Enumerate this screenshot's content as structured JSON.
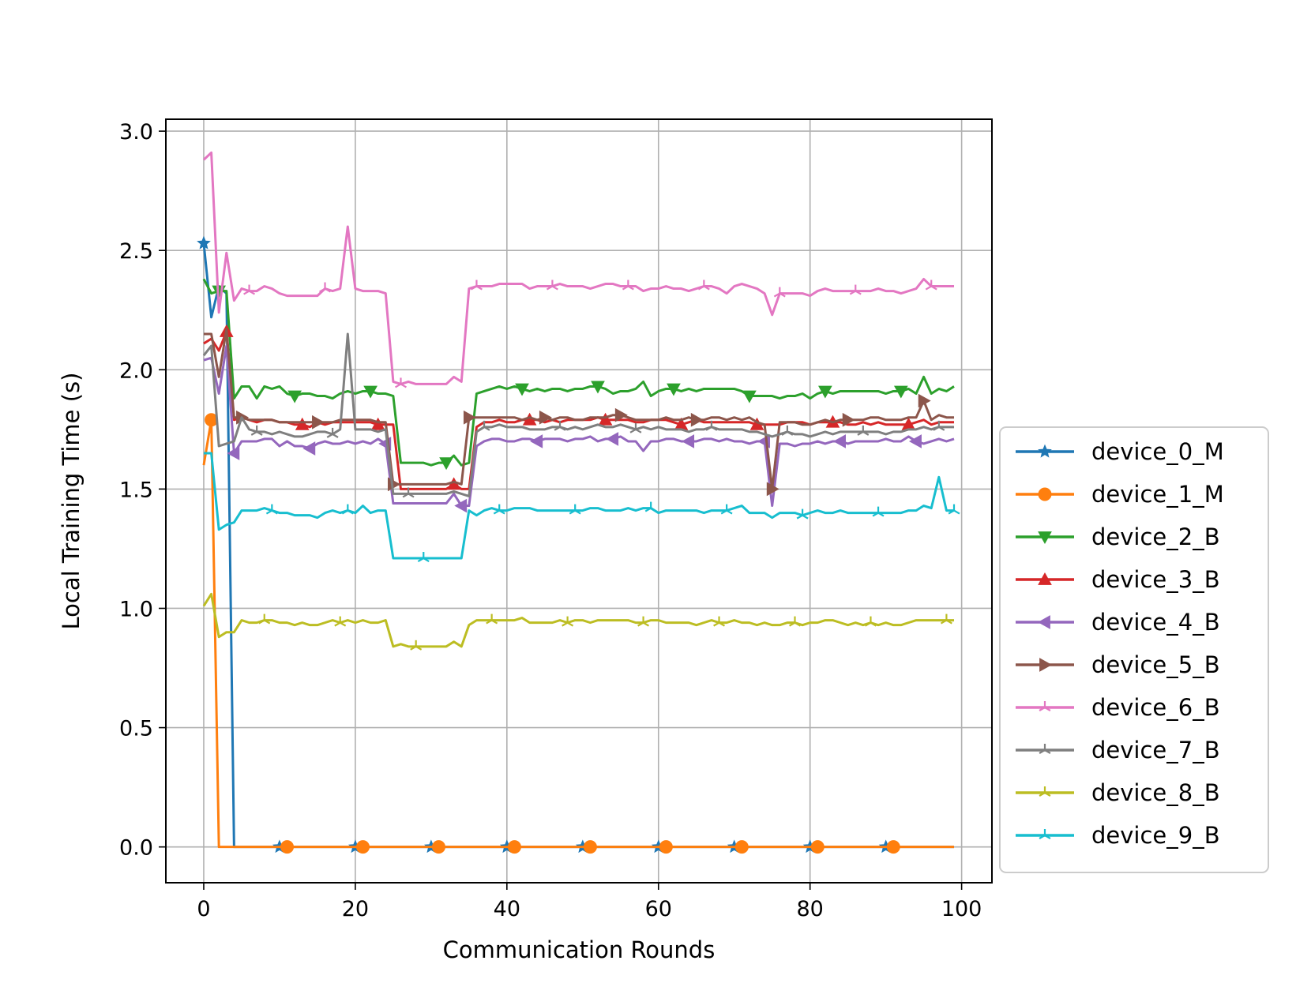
{
  "chart_data": {
    "type": "line",
    "title": "",
    "xlabel": "Communication Rounds",
    "ylabel": "Local Training Time (s)",
    "xlim": [
      -5,
      104
    ],
    "ylim": [
      -0.15,
      3.05
    ],
    "xticks": [
      0,
      20,
      40,
      60,
      80,
      100
    ],
    "xtick_labels": [
      "0",
      "20",
      "40",
      "60",
      "80",
      "100"
    ],
    "yticks": [
      0.0,
      0.5,
      1.0,
      1.5,
      2.0,
      2.5,
      3.0
    ],
    "ytick_labels": [
      "0.0",
      "0.5",
      "1.0",
      "1.5",
      "2.0",
      "2.5",
      "3.0"
    ],
    "grid": true,
    "legend_position": "outside-right",
    "marker_every": 10,
    "series": [
      {
        "name": "device_0_M",
        "color": "#1f77b4",
        "marker": "star",
        "marker_start": 0,
        "values": [
          2.53,
          2.22,
          2.35,
          2.32,
          0.0,
          0.0,
          0.0,
          0.0,
          0.0,
          0.0,
          0.0,
          0.0,
          0.0,
          0.0,
          0.0,
          0.0,
          0.0,
          0.0,
          0.0,
          0.0,
          0.0,
          0.0,
          0.0,
          0.0,
          0.0,
          0.0,
          0.0,
          0.0,
          0.0,
          0.0,
          0.0,
          0.0,
          0.0,
          0.0,
          0.0,
          0.0,
          0.0,
          0.0,
          0.0,
          0.0,
          0.0,
          0.0,
          0.0,
          0.0,
          0.0,
          0.0,
          0.0,
          0.0,
          0.0,
          0.0,
          0.0,
          0.0,
          0.0,
          0.0,
          0.0,
          0.0,
          0.0,
          0.0,
          0.0,
          0.0,
          0.0,
          0.0,
          0.0,
          0.0,
          0.0,
          0.0,
          0.0,
          0.0,
          0.0,
          0.0,
          0.0,
          0.0,
          0.0,
          0.0,
          0.0,
          0.0,
          0.0,
          0.0,
          0.0,
          0.0,
          0.0,
          0.0,
          0.0,
          0.0,
          0.0,
          0.0,
          0.0,
          0.0,
          0.0,
          0.0,
          0.0,
          0.0,
          0.0,
          0.0,
          0.0,
          0.0,
          0.0,
          0.0,
          0.0,
          0.0
        ]
      },
      {
        "name": "device_1_M",
        "color": "#ff7f0e",
        "marker": "circle",
        "marker_start": 1,
        "values": [
          1.6,
          1.79,
          0.0,
          0.0,
          0.0,
          0.0,
          0.0,
          0.0,
          0.0,
          0.0,
          0.0,
          0.0,
          0.0,
          0.0,
          0.0,
          0.0,
          0.0,
          0.0,
          0.0,
          0.0,
          0.0,
          0.0,
          0.0,
          0.0,
          0.0,
          0.0,
          0.0,
          0.0,
          0.0,
          0.0,
          0.0,
          0.0,
          0.0,
          0.0,
          0.0,
          0.0,
          0.0,
          0.0,
          0.0,
          0.0,
          0.0,
          0.0,
          0.0,
          0.0,
          0.0,
          0.0,
          0.0,
          0.0,
          0.0,
          0.0,
          0.0,
          0.0,
          0.0,
          0.0,
          0.0,
          0.0,
          0.0,
          0.0,
          0.0,
          0.0,
          0.0,
          0.0,
          0.0,
          0.0,
          0.0,
          0.0,
          0.0,
          0.0,
          0.0,
          0.0,
          0.0,
          0.0,
          0.0,
          0.0,
          0.0,
          0.0,
          0.0,
          0.0,
          0.0,
          0.0,
          0.0,
          0.0,
          0.0,
          0.0,
          0.0,
          0.0,
          0.0,
          0.0,
          0.0,
          0.0,
          0.0,
          0.0,
          0.0,
          0.0,
          0.0,
          0.0,
          0.0,
          0.0,
          0.0,
          0.0
        ]
      },
      {
        "name": "device_2_B",
        "color": "#2ca02c",
        "marker": "triangle-down",
        "marker_start": 2,
        "values": [
          2.38,
          2.32,
          2.33,
          2.33,
          1.88,
          1.93,
          1.93,
          1.88,
          1.93,
          1.92,
          1.93,
          1.9,
          1.89,
          1.9,
          1.9,
          1.89,
          1.89,
          1.88,
          1.9,
          1.91,
          1.9,
          1.91,
          1.91,
          1.9,
          1.9,
          1.89,
          1.61,
          1.61,
          1.61,
          1.61,
          1.6,
          1.61,
          1.61,
          1.64,
          1.6,
          1.61,
          1.9,
          1.91,
          1.92,
          1.93,
          1.92,
          1.93,
          1.92,
          1.91,
          1.92,
          1.91,
          1.92,
          1.92,
          1.91,
          1.92,
          1.92,
          1.93,
          1.93,
          1.92,
          1.9,
          1.91,
          1.91,
          1.92,
          1.95,
          1.89,
          1.91,
          1.92,
          1.92,
          1.91,
          1.92,
          1.91,
          1.92,
          1.92,
          1.92,
          1.92,
          1.92,
          1.91,
          1.89,
          1.89,
          1.89,
          1.89,
          1.88,
          1.89,
          1.89,
          1.9,
          1.88,
          1.9,
          1.91,
          1.9,
          1.91,
          1.91,
          1.91,
          1.91,
          1.91,
          1.91,
          1.9,
          1.91,
          1.91,
          1.92,
          1.9,
          1.97,
          1.9,
          1.92,
          1.91,
          1.93
        ]
      },
      {
        "name": "device_3_B",
        "color": "#d62728",
        "marker": "triangle-up",
        "marker_start": 3,
        "values": [
          2.11,
          2.13,
          2.08,
          2.16,
          1.79,
          1.8,
          1.79,
          1.78,
          1.79,
          1.79,
          1.78,
          1.78,
          1.77,
          1.77,
          1.76,
          1.78,
          1.77,
          1.78,
          1.78,
          1.78,
          1.78,
          1.78,
          1.78,
          1.77,
          1.77,
          1.77,
          1.5,
          1.5,
          1.5,
          1.5,
          1.5,
          1.5,
          1.5,
          1.52,
          1.5,
          1.5,
          1.76,
          1.78,
          1.78,
          1.79,
          1.78,
          1.78,
          1.79,
          1.79,
          1.79,
          1.78,
          1.79,
          1.78,
          1.79,
          1.79,
          1.79,
          1.79,
          1.8,
          1.79,
          1.79,
          1.79,
          1.79,
          1.78,
          1.78,
          1.79,
          1.79,
          1.79,
          1.78,
          1.77,
          1.78,
          1.79,
          1.78,
          1.78,
          1.78,
          1.78,
          1.78,
          1.78,
          1.78,
          1.77,
          1.77,
          1.77,
          1.77,
          1.78,
          1.78,
          1.78,
          1.77,
          1.78,
          1.78,
          1.78,
          1.78,
          1.77,
          1.77,
          1.78,
          1.77,
          1.78,
          1.77,
          1.77,
          1.77,
          1.77,
          1.78,
          1.79,
          1.77,
          1.78,
          1.78,
          1.78
        ]
      },
      {
        "name": "device_4_B",
        "color": "#9467bd",
        "marker": "triangle-left",
        "marker_start": 4,
        "values": [
          2.04,
          2.05,
          1.9,
          2.1,
          1.65,
          1.7,
          1.7,
          1.7,
          1.71,
          1.71,
          1.68,
          1.7,
          1.68,
          1.68,
          1.67,
          1.69,
          1.7,
          1.69,
          1.69,
          1.7,
          1.69,
          1.7,
          1.69,
          1.71,
          1.69,
          1.44,
          1.44,
          1.44,
          1.44,
          1.44,
          1.44,
          1.44,
          1.44,
          1.48,
          1.43,
          1.43,
          1.68,
          1.7,
          1.71,
          1.71,
          1.7,
          1.7,
          1.71,
          1.71,
          1.7,
          1.71,
          1.71,
          1.71,
          1.7,
          1.71,
          1.71,
          1.72,
          1.7,
          1.71,
          1.71,
          1.72,
          1.7,
          1.7,
          1.66,
          1.7,
          1.7,
          1.71,
          1.71,
          1.7,
          1.7,
          1.7,
          1.71,
          1.71,
          1.7,
          1.71,
          1.7,
          1.7,
          1.69,
          1.7,
          1.7,
          1.43,
          1.69,
          1.69,
          1.68,
          1.69,
          1.69,
          1.7,
          1.69,
          1.7,
          1.7,
          1.69,
          1.7,
          1.7,
          1.7,
          1.7,
          1.71,
          1.7,
          1.7,
          1.72,
          1.7,
          1.69,
          1.7,
          1.71,
          1.7,
          1.71
        ]
      },
      {
        "name": "device_5_B",
        "color": "#8c564b",
        "marker": "triangle-right",
        "marker_start": 5,
        "values": [
          2.15,
          2.15,
          1.97,
          2.17,
          1.8,
          1.8,
          1.79,
          1.79,
          1.79,
          1.79,
          1.78,
          1.78,
          1.78,
          1.78,
          1.78,
          1.78,
          1.78,
          1.78,
          1.79,
          1.79,
          1.79,
          1.79,
          1.79,
          1.78,
          1.78,
          1.52,
          1.52,
          1.52,
          1.52,
          1.52,
          1.52,
          1.52,
          1.52,
          1.53,
          1.52,
          1.8,
          1.8,
          1.8,
          1.8,
          1.8,
          1.8,
          1.8,
          1.79,
          1.8,
          1.79,
          1.8,
          1.79,
          1.8,
          1.8,
          1.79,
          1.79,
          1.8,
          1.8,
          1.8,
          1.81,
          1.81,
          1.8,
          1.79,
          1.79,
          1.79,
          1.79,
          1.8,
          1.79,
          1.79,
          1.8,
          1.79,
          1.79,
          1.8,
          1.8,
          1.79,
          1.8,
          1.79,
          1.8,
          1.78,
          1.77,
          1.5,
          1.78,
          1.78,
          1.78,
          1.77,
          1.77,
          1.78,
          1.79,
          1.78,
          1.79,
          1.79,
          1.79,
          1.79,
          1.8,
          1.8,
          1.79,
          1.79,
          1.79,
          1.8,
          1.8,
          1.87,
          1.79,
          1.81,
          1.8,
          1.8
        ]
      },
      {
        "name": "device_6_B",
        "color": "#e377c2",
        "marker": "tri",
        "marker_start": 6,
        "values": [
          2.88,
          2.91,
          2.24,
          2.49,
          2.29,
          2.34,
          2.33,
          2.33,
          2.35,
          2.34,
          2.32,
          2.31,
          2.31,
          2.31,
          2.31,
          2.31,
          2.34,
          2.33,
          2.34,
          2.6,
          2.34,
          2.33,
          2.33,
          2.33,
          2.32,
          1.95,
          1.94,
          1.95,
          1.94,
          1.94,
          1.94,
          1.94,
          1.94,
          1.97,
          1.95,
          2.34,
          2.35,
          2.35,
          2.35,
          2.36,
          2.36,
          2.36,
          2.36,
          2.34,
          2.35,
          2.35,
          2.35,
          2.36,
          2.35,
          2.35,
          2.35,
          2.34,
          2.35,
          2.36,
          2.36,
          2.35,
          2.35,
          2.35,
          2.33,
          2.34,
          2.34,
          2.35,
          2.34,
          2.34,
          2.33,
          2.34,
          2.35,
          2.35,
          2.34,
          2.32,
          2.35,
          2.36,
          2.35,
          2.34,
          2.32,
          2.23,
          2.32,
          2.32,
          2.32,
          2.32,
          2.31,
          2.33,
          2.34,
          2.33,
          2.33,
          2.33,
          2.33,
          2.33,
          2.33,
          2.34,
          2.33,
          2.33,
          2.32,
          2.33,
          2.34,
          2.38,
          2.35,
          2.35,
          2.35,
          2.35
        ]
      },
      {
        "name": "device_7_B",
        "color": "#7f7f7f",
        "marker": "tri",
        "marker_start": 7,
        "values": [
          2.06,
          2.1,
          1.68,
          1.69,
          1.7,
          1.8,
          1.75,
          1.74,
          1.74,
          1.73,
          1.74,
          1.73,
          1.72,
          1.72,
          1.73,
          1.74,
          1.74,
          1.73,
          1.75,
          2.15,
          1.75,
          1.75,
          1.75,
          1.74,
          1.75,
          1.48,
          1.48,
          1.48,
          1.48,
          1.48,
          1.48,
          1.48,
          1.48,
          1.49,
          1.48,
          1.47,
          1.74,
          1.76,
          1.76,
          1.77,
          1.76,
          1.76,
          1.76,
          1.75,
          1.75,
          1.75,
          1.76,
          1.76,
          1.75,
          1.76,
          1.75,
          1.76,
          1.77,
          1.76,
          1.76,
          1.77,
          1.76,
          1.75,
          1.76,
          1.75,
          1.76,
          1.75,
          1.75,
          1.75,
          1.74,
          1.75,
          1.75,
          1.76,
          1.75,
          1.75,
          1.75,
          1.75,
          1.74,
          1.74,
          1.73,
          1.72,
          1.73,
          1.74,
          1.73,
          1.73,
          1.72,
          1.73,
          1.74,
          1.73,
          1.74,
          1.74,
          1.74,
          1.74,
          1.74,
          1.74,
          1.73,
          1.74,
          1.74,
          1.75,
          1.75,
          1.76,
          1.75,
          1.76,
          1.76,
          1.76
        ]
      },
      {
        "name": "device_8_B",
        "color": "#bcbd22",
        "marker": "tri",
        "marker_start": 8,
        "values": [
          1.01,
          1.06,
          0.88,
          0.9,
          0.9,
          0.95,
          0.94,
          0.94,
          0.95,
          0.95,
          0.94,
          0.94,
          0.93,
          0.94,
          0.93,
          0.93,
          0.94,
          0.95,
          0.94,
          0.95,
          0.94,
          0.95,
          0.94,
          0.94,
          0.95,
          0.84,
          0.85,
          0.84,
          0.84,
          0.84,
          0.84,
          0.84,
          0.84,
          0.86,
          0.84,
          0.93,
          0.95,
          0.95,
          0.95,
          0.95,
          0.95,
          0.95,
          0.96,
          0.94,
          0.94,
          0.94,
          0.94,
          0.95,
          0.94,
          0.95,
          0.95,
          0.94,
          0.95,
          0.95,
          0.95,
          0.95,
          0.95,
          0.94,
          0.94,
          0.95,
          0.95,
          0.94,
          0.94,
          0.94,
          0.94,
          0.93,
          0.94,
          0.95,
          0.94,
          0.94,
          0.95,
          0.94,
          0.94,
          0.93,
          0.94,
          0.93,
          0.93,
          0.94,
          0.94,
          0.93,
          0.94,
          0.94,
          0.95,
          0.95,
          0.94,
          0.93,
          0.94,
          0.93,
          0.94,
          0.93,
          0.94,
          0.93,
          0.93,
          0.94,
          0.95,
          0.95,
          0.95,
          0.95,
          0.95,
          0.95
        ]
      },
      {
        "name": "device_9_B",
        "color": "#17becf",
        "marker": "tri",
        "marker_start": 9,
        "values": [
          1.65,
          1.65,
          1.33,
          1.35,
          1.36,
          1.41,
          1.41,
          1.41,
          1.42,
          1.41,
          1.4,
          1.4,
          1.39,
          1.39,
          1.39,
          1.38,
          1.4,
          1.41,
          1.4,
          1.41,
          1.4,
          1.43,
          1.4,
          1.41,
          1.41,
          1.21,
          1.21,
          1.21,
          1.21,
          1.21,
          1.21,
          1.21,
          1.21,
          1.21,
          1.21,
          1.41,
          1.39,
          1.41,
          1.42,
          1.41,
          1.41,
          1.42,
          1.42,
          1.42,
          1.41,
          1.41,
          1.41,
          1.41,
          1.41,
          1.41,
          1.41,
          1.42,
          1.42,
          1.41,
          1.41,
          1.41,
          1.42,
          1.41,
          1.42,
          1.42,
          1.4,
          1.41,
          1.41,
          1.41,
          1.41,
          1.41,
          1.4,
          1.41,
          1.41,
          1.41,
          1.42,
          1.43,
          1.4,
          1.4,
          1.4,
          1.38,
          1.4,
          1.4,
          1.4,
          1.39,
          1.4,
          1.41,
          1.4,
          1.4,
          1.41,
          1.4,
          1.4,
          1.4,
          1.4,
          1.4,
          1.4,
          1.4,
          1.4,
          1.41,
          1.41,
          1.43,
          1.42,
          1.55,
          1.41,
          1.41
        ]
      }
    ]
  }
}
